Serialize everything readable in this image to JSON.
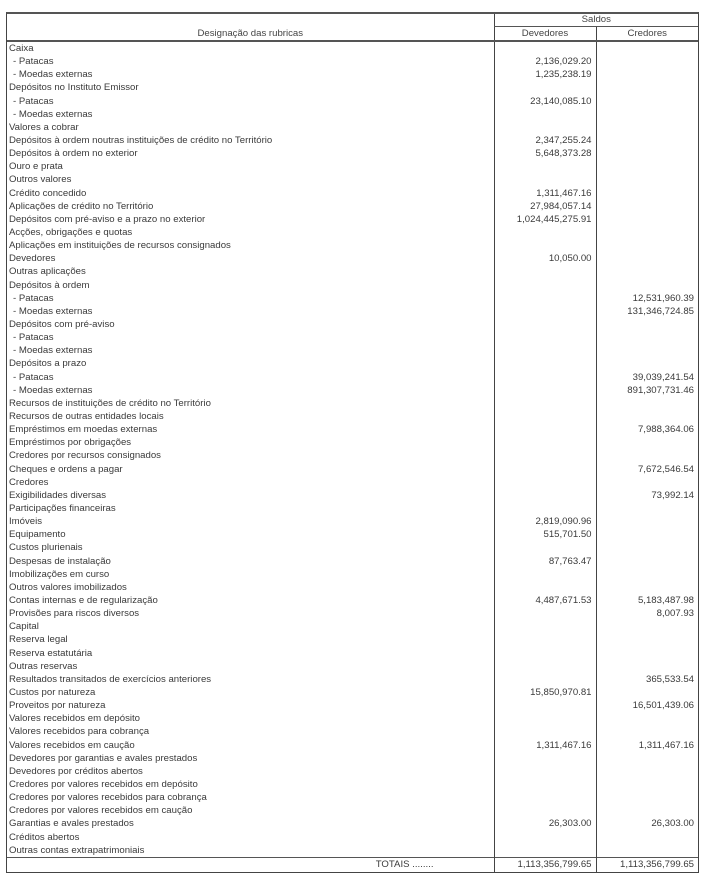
{
  "header": {
    "designation": "Designação das rubricas",
    "saldos": "Saldos",
    "devedores": "Devedores",
    "credores": "Credores"
  },
  "rows": [
    {
      "label": "Caixa",
      "sub": false,
      "dev": "",
      "cred": ""
    },
    {
      "label": "- Patacas",
      "sub": true,
      "dev": "2,136,029.20",
      "cred": ""
    },
    {
      "label": "- Moedas externas",
      "sub": true,
      "dev": "1,235,238.19",
      "cred": ""
    },
    {
      "label": "Depósitos no Instituto Emissor",
      "sub": false,
      "dev": "",
      "cred": ""
    },
    {
      "label": "- Patacas",
      "sub": true,
      "dev": "23,140,085.10",
      "cred": ""
    },
    {
      "label": "- Moedas externas",
      "sub": true,
      "dev": "",
      "cred": ""
    },
    {
      "label": "Valores a cobrar",
      "sub": false,
      "dev": "",
      "cred": ""
    },
    {
      "label": "Depósitos à ordem noutras instituições de crédito no Território",
      "sub": false,
      "dev": "2,347,255.24",
      "cred": ""
    },
    {
      "label": "Depósitos à ordem no exterior",
      "sub": false,
      "dev": "5,648,373.28",
      "cred": ""
    },
    {
      "label": "Ouro e prata",
      "sub": false,
      "dev": "",
      "cred": ""
    },
    {
      "label": "Outros valores",
      "sub": false,
      "dev": "",
      "cred": ""
    },
    {
      "label": "Crédito concedido",
      "sub": false,
      "dev": "1,311,467.16",
      "cred": ""
    },
    {
      "label": "Aplicações de crédito no Território",
      "sub": false,
      "dev": "27,984,057.14",
      "cred": ""
    },
    {
      "label": "Depósitos com pré-aviso e a prazo no exterior",
      "sub": false,
      "dev": "1,024,445,275.91",
      "cred": ""
    },
    {
      "label": "Acções, obrigações e quotas",
      "sub": false,
      "dev": "",
      "cred": ""
    },
    {
      "label": "Aplicações em instituições de recursos consignados",
      "sub": false,
      "dev": "",
      "cred": ""
    },
    {
      "label": "Devedores",
      "sub": false,
      "dev": "10,050.00",
      "cred": ""
    },
    {
      "label": "Outras aplicações",
      "sub": false,
      "dev": "",
      "cred": ""
    },
    {
      "label": "Depósitos à ordem",
      "sub": false,
      "dev": "",
      "cred": ""
    },
    {
      "label": "- Patacas",
      "sub": true,
      "dev": "",
      "cred": "12,531,960.39"
    },
    {
      "label": "- Moedas externas",
      "sub": true,
      "dev": "",
      "cred": "131,346,724.85"
    },
    {
      "label": "Depósitos com pré-aviso",
      "sub": false,
      "dev": "",
      "cred": ""
    },
    {
      "label": "- Patacas",
      "sub": true,
      "dev": "",
      "cred": ""
    },
    {
      "label": "- Moedas externas",
      "sub": true,
      "dev": "",
      "cred": ""
    },
    {
      "label": "Depósitos a prazo",
      "sub": false,
      "dev": "",
      "cred": ""
    },
    {
      "label": "- Patacas",
      "sub": true,
      "dev": "",
      "cred": "39,039,241.54"
    },
    {
      "label": "- Moedas externas",
      "sub": true,
      "dev": "",
      "cred": "891,307,731.46"
    },
    {
      "label": "Recursos de instituições de crédito no Território",
      "sub": false,
      "dev": "",
      "cred": ""
    },
    {
      "label": "Recursos de outras entidades locais",
      "sub": false,
      "dev": "",
      "cred": ""
    },
    {
      "label": "Empréstimos em moedas externas",
      "sub": false,
      "dev": "",
      "cred": "7,988,364.06"
    },
    {
      "label": "Empréstimos por obrigações",
      "sub": false,
      "dev": "",
      "cred": ""
    },
    {
      "label": "Credores por recursos consignados",
      "sub": false,
      "dev": "",
      "cred": ""
    },
    {
      "label": "Cheques e ordens a pagar",
      "sub": false,
      "dev": "",
      "cred": "7,672,546.54"
    },
    {
      "label": "Credores",
      "sub": false,
      "dev": "",
      "cred": ""
    },
    {
      "label": "Exigibilidades diversas",
      "sub": false,
      "dev": "",
      "cred": "73,992.14"
    },
    {
      "label": "Participações financeiras",
      "sub": false,
      "dev": "",
      "cred": ""
    },
    {
      "label": "Imóveis",
      "sub": false,
      "dev": "2,819,090.96",
      "cred": ""
    },
    {
      "label": "Equipamento",
      "sub": false,
      "dev": "515,701.50",
      "cred": ""
    },
    {
      "label": "Custos plurienais",
      "sub": false,
      "dev": "",
      "cred": ""
    },
    {
      "label": "Despesas de instalação",
      "sub": false,
      "dev": "87,763.47",
      "cred": ""
    },
    {
      "label": "Imobilizações em curso",
      "sub": false,
      "dev": "",
      "cred": ""
    },
    {
      "label": "Outros valores imobilizados",
      "sub": false,
      "dev": "",
      "cred": ""
    },
    {
      "label": "Contas internas e de regularização",
      "sub": false,
      "dev": "4,487,671.53",
      "cred": "5,183,487.98"
    },
    {
      "label": "Provisões para riscos diversos",
      "sub": false,
      "dev": "",
      "cred": "8,007.93"
    },
    {
      "label": "Capital",
      "sub": false,
      "dev": "",
      "cred": ""
    },
    {
      "label": "Reserva legal",
      "sub": false,
      "dev": "",
      "cred": ""
    },
    {
      "label": "Reserva estatutária",
      "sub": false,
      "dev": "",
      "cred": ""
    },
    {
      "label": "Outras reservas",
      "sub": false,
      "dev": "",
      "cred": ""
    },
    {
      "label": "Resultados transitados de exercícios anteriores",
      "sub": false,
      "dev": "",
      "cred": "365,533.54"
    },
    {
      "label": "Custos por natureza",
      "sub": false,
      "dev": "15,850,970.81",
      "cred": ""
    },
    {
      "label": "Proveitos por natureza",
      "sub": false,
      "dev": "",
      "cred": "16,501,439.06"
    },
    {
      "label": "Valores recebidos em depósito",
      "sub": false,
      "dev": "",
      "cred": ""
    },
    {
      "label": "Valores recebidos para cobrança",
      "sub": false,
      "dev": "",
      "cred": ""
    },
    {
      "label": "Valores recebidos em caução",
      "sub": false,
      "dev": "1,311,467.16",
      "cred": "1,311,467.16"
    },
    {
      "label": "Devedores por garantias e avales prestados",
      "sub": false,
      "dev": "",
      "cred": ""
    },
    {
      "label": "Devedores por créditos abertos",
      "sub": false,
      "dev": "",
      "cred": ""
    },
    {
      "label": "Credores por valores recebidos em depósito",
      "sub": false,
      "dev": "",
      "cred": ""
    },
    {
      "label": "Credores por valores recebidos para cobrança",
      "sub": false,
      "dev": "",
      "cred": ""
    },
    {
      "label": "Credores por valores recebidos em caução",
      "sub": false,
      "dev": "",
      "cred": ""
    },
    {
      "label": "Garantias e avales prestados",
      "sub": false,
      "dev": "26,303.00",
      "cred": "26,303.00"
    },
    {
      "label": "Créditos abertos",
      "sub": false,
      "dev": "",
      "cred": ""
    },
    {
      "label": "Outras contas extrapatrimoniais",
      "sub": false,
      "dev": "",
      "cred": ""
    }
  ],
  "totals": {
    "label": "TOTAIS ........",
    "dev": "1,113,356,799.65",
    "cred": "1,113,356,799.65"
  }
}
